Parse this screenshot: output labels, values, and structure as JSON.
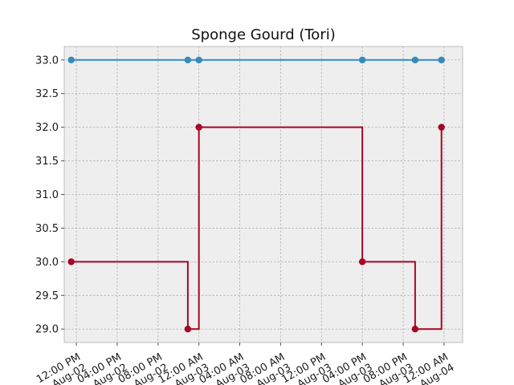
{
  "chart_data": {
    "type": "line",
    "title": "Sponge Gourd (Tori)",
    "xlabel": "",
    "ylabel": "",
    "step": "post",
    "grid": true,
    "x_axis_type": "datetime",
    "xlim": [
      "2023-08-02T10:49",
      "2023-08-04T01:49"
    ],
    "ylim": [
      28.8,
      33.2
    ],
    "x_ticks": [
      {
        "t": "2023-08-02T12:00",
        "label_line1": "12:00 PM",
        "label_line2": "Aug-02"
      },
      {
        "t": "2023-08-02T16:00",
        "label_line1": "04:00 PM",
        "label_line2": "Aug-02"
      },
      {
        "t": "2023-08-02T20:00",
        "label_line1": "08:00 PM",
        "label_line2": "Aug-02"
      },
      {
        "t": "2023-08-03T00:00",
        "label_line1": "12:00 AM",
        "label_line2": "Aug-03"
      },
      {
        "t": "2023-08-03T04:00",
        "label_line1": "04:00 AM",
        "label_line2": "Aug-03"
      },
      {
        "t": "2023-08-03T08:00",
        "label_line1": "08:00 AM",
        "label_line2": "Aug-03"
      },
      {
        "t": "2023-08-03T12:00",
        "label_line1": "12:00 PM",
        "label_line2": "Aug-03"
      },
      {
        "t": "2023-08-03T16:00",
        "label_line1": "04:00 PM",
        "label_line2": "Aug-03"
      },
      {
        "t": "2023-08-03T20:00",
        "label_line1": "08:00 PM",
        "label_line2": "Aug-03"
      },
      {
        "t": "2023-08-04T00:00",
        "label_line1": "12:00 AM",
        "label_line2": "Aug-04"
      }
    ],
    "y_ticks": [
      "29.0",
      "29.5",
      "30.0",
      "30.5",
      "31.0",
      "31.5",
      "32.0",
      "32.5",
      "33.0"
    ],
    "series": [
      {
        "color": "#348ABD",
        "points": [
          {
            "x": "2023-08-02T11:30",
            "y": 33.0
          },
          {
            "x": "2023-08-02T22:55",
            "y": 33.0
          },
          {
            "x": "2023-08-03T00:00",
            "y": 33.0
          },
          {
            "x": "2023-08-03T16:00",
            "y": 33.0
          },
          {
            "x": "2023-08-03T21:10",
            "y": 33.0
          },
          {
            "x": "2023-08-03T23:45",
            "y": 33.0
          }
        ]
      },
      {
        "color": "#A60628",
        "points": [
          {
            "x": "2023-08-02T11:30",
            "y": 30.0
          },
          {
            "x": "2023-08-02T22:55",
            "y": 29.0
          },
          {
            "x": "2023-08-03T00:00",
            "y": 32.0
          },
          {
            "x": "2023-08-03T16:00",
            "y": 30.0
          },
          {
            "x": "2023-08-03T21:10",
            "y": 29.0
          },
          {
            "x": "2023-08-03T23:45",
            "y": 32.0
          }
        ]
      }
    ],
    "colors": {
      "axes_bg": "#EEEEEE",
      "grid": "#B2B2B2",
      "frame": "#BCBCBC"
    }
  }
}
